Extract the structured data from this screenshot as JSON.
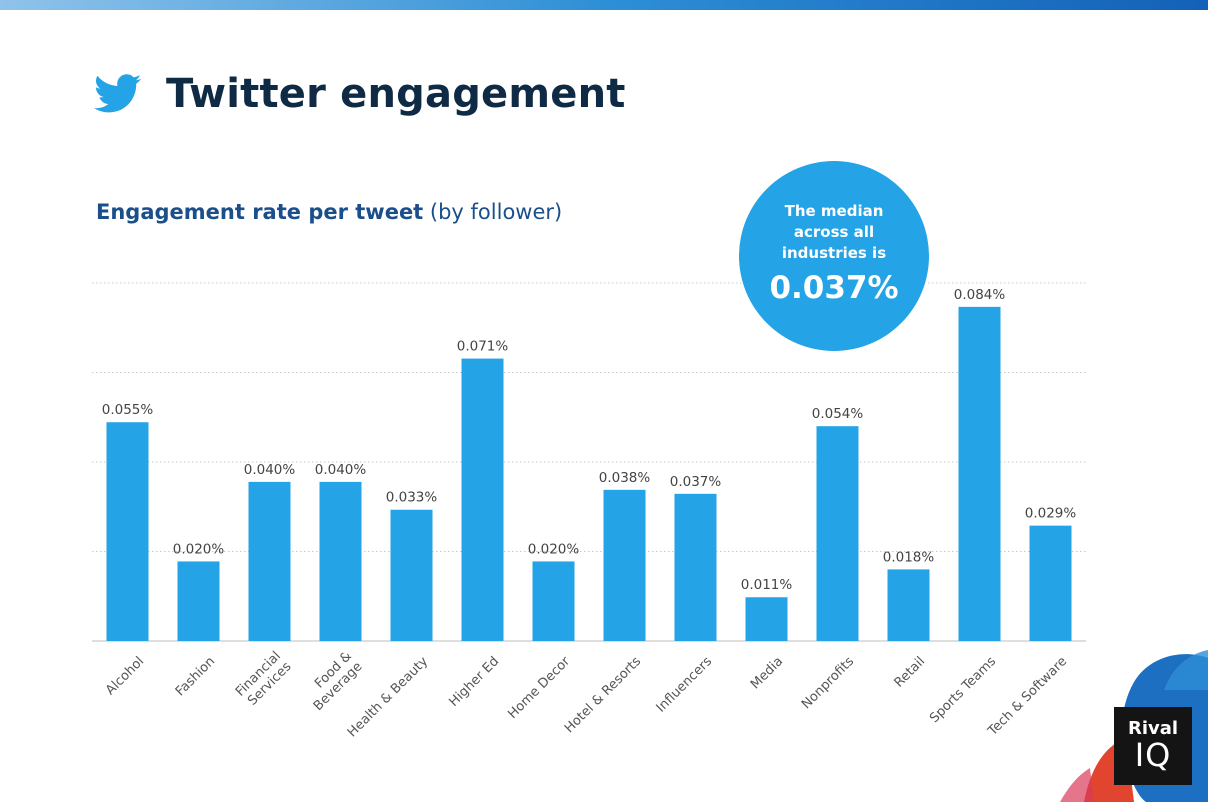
{
  "header": {
    "title": "Twitter engagement",
    "icon": "twitter-bird-icon"
  },
  "subtitle": {
    "bold": "Engagement rate per tweet",
    "light": " (by follower)"
  },
  "median": {
    "text": "The median across all industries is",
    "value": "0.037%"
  },
  "logo": {
    "line1": "Rival",
    "line2": "IQ"
  },
  "colors": {
    "bar": "#24a3e6",
    "title": "#0f2a44",
    "subtitle": "#1a4f8b"
  },
  "chart_data": {
    "type": "bar",
    "categories": [
      "Alcohol",
      "Fashion",
      "Financial Services",
      "Food & Beverage",
      "Health & Beauty",
      "Higher Ed",
      "Home Decor",
      "Hotel & Resorts",
      "Influencers",
      "Media",
      "Nonprofits",
      "Retail",
      "Sports Teams",
      "Tech & Software"
    ],
    "category_lines": [
      [
        "Alcohol"
      ],
      [
        "Fashion"
      ],
      [
        "Financial",
        "Services"
      ],
      [
        "Food &",
        "Beverage"
      ],
      [
        "Health & Beauty"
      ],
      [
        "Higher Ed"
      ],
      [
        "Home Decor"
      ],
      [
        "Hotel & Resorts"
      ],
      [
        "Influencers"
      ],
      [
        "Media"
      ],
      [
        "Nonprofits"
      ],
      [
        "Retail"
      ],
      [
        "Sports Teams"
      ],
      [
        "Tech & Software"
      ]
    ],
    "values": [
      0.055,
      0.02,
      0.04,
      0.04,
      0.033,
      0.071,
      0.02,
      0.038,
      0.037,
      0.011,
      0.054,
      0.018,
      0.084,
      0.029
    ],
    "labels": [
      "0.055%",
      "0.020%",
      "0.040%",
      "0.040%",
      "0.033%",
      "0.071%",
      "0.020%",
      "0.038%",
      "0.037%",
      "0.011%",
      "0.054%",
      "0.018%",
      "0.084%",
      "0.029%"
    ],
    "ylim": [
      0,
      0.09
    ],
    "grid": true,
    "xlabel": "",
    "ylabel": ""
  }
}
